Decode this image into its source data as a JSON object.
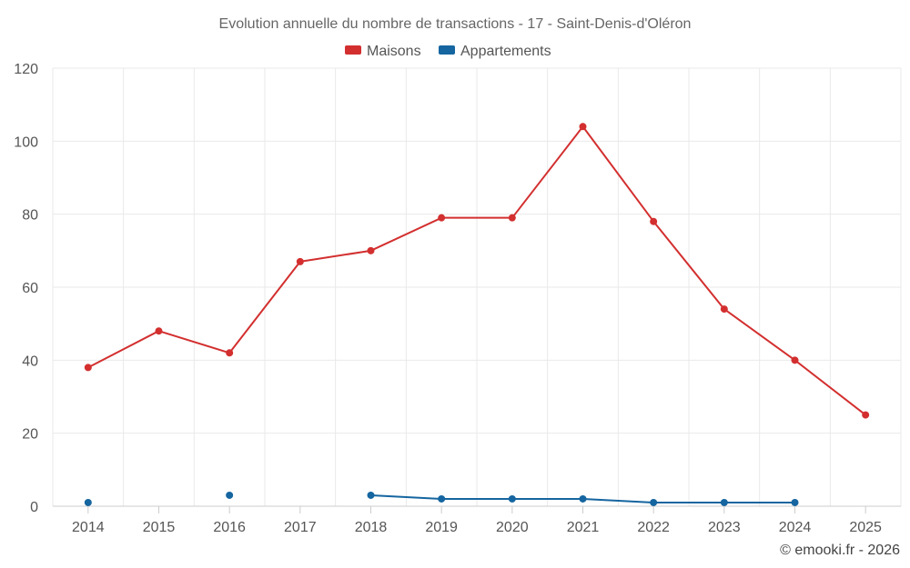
{
  "chart_data": {
    "type": "line",
    "title": "Evolution annuelle du nombre de transactions - 17 - Saint-Denis-d'Oléron",
    "categories": [
      "2014",
      "2015",
      "2016",
      "2017",
      "2018",
      "2019",
      "2020",
      "2021",
      "2022",
      "2023",
      "2024",
      "2025"
    ],
    "series": [
      {
        "name": "Maisons",
        "color": "#d32f2f",
        "values": [
          38,
          48,
          42,
          67,
          70,
          79,
          79,
          104,
          78,
          54,
          40,
          25
        ]
      },
      {
        "name": "Appartements",
        "color": "#1565a0",
        "values": [
          1,
          null,
          3,
          null,
          3,
          2,
          2,
          2,
          1,
          1,
          1,
          null
        ]
      }
    ],
    "ylim": [
      0,
      120
    ],
    "yticks": [
      0,
      20,
      40,
      60,
      80,
      100,
      120
    ],
    "legend_position": "top-center",
    "grid": true
  },
  "credit": "© emooki.fr - 2026"
}
